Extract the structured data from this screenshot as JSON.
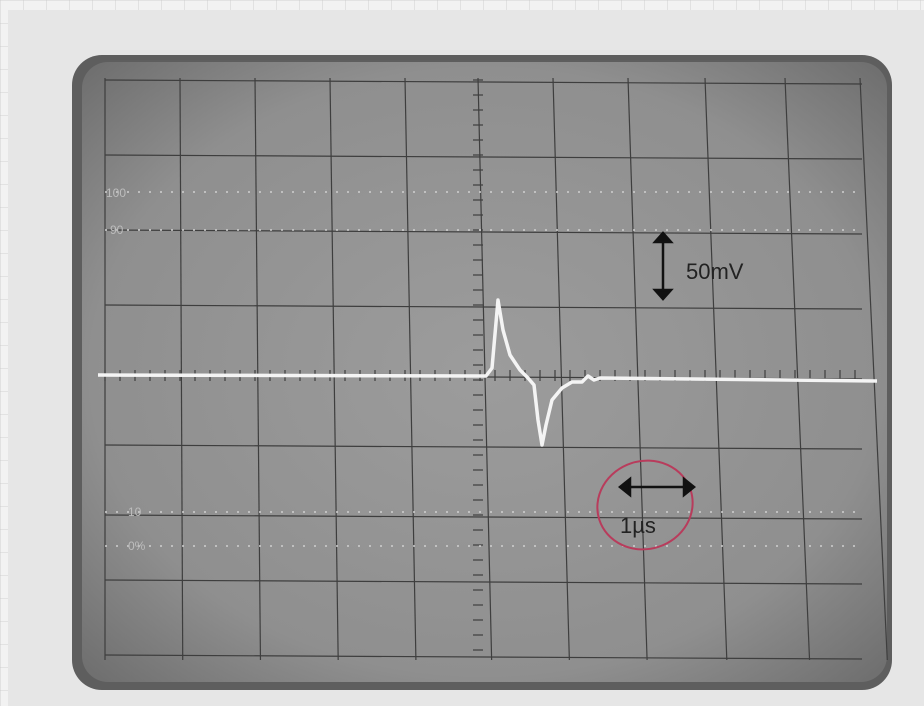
{
  "graticule_labels": {
    "top": "100",
    "upper": "90",
    "lower": "10",
    "bottom": "0%"
  },
  "annotations": {
    "voltage_scale": "50mV",
    "time_scale": "1µs"
  }
}
